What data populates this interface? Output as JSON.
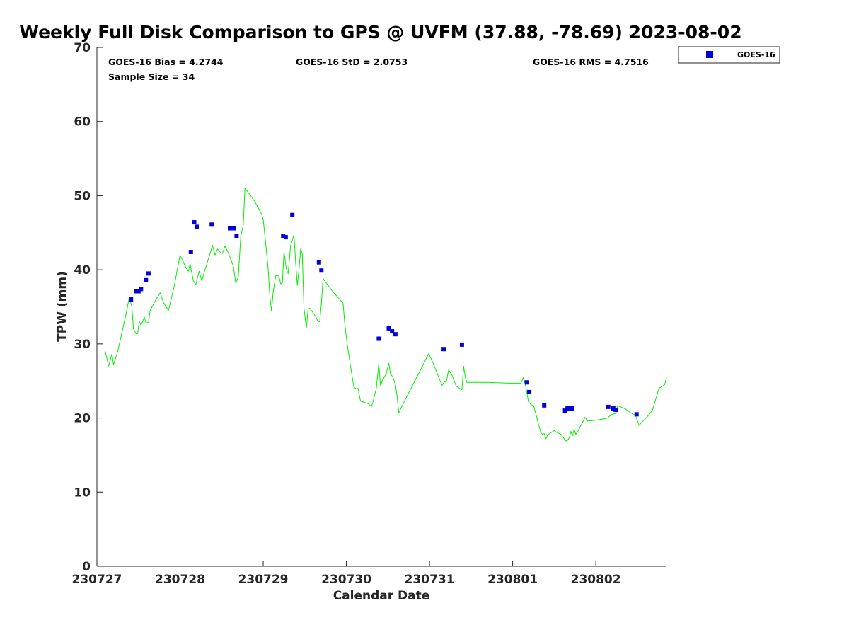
{
  "chart_data": {
    "type": "scatter",
    "title": "Weekly Full Disk Comparison to GPS @ UVFM (37.88, -78.69) 2023-08-02",
    "xlabel": "Calendar Date",
    "ylabel": "TPW (mm)",
    "xlim": [
      0,
      6.85
    ],
    "ylim": [
      0,
      70
    ],
    "x_ticks": [
      0,
      1,
      2,
      3,
      4,
      5,
      6
    ],
    "x_tick_labels": [
      "230727",
      "230728",
      "230729",
      "230730",
      "230731",
      "230801",
      "230802"
    ],
    "y_ticks": [
      0,
      10,
      20,
      30,
      40,
      50,
      60,
      70
    ],
    "y_tick_labels": [
      "0",
      "10",
      "20",
      "30",
      "40",
      "50",
      "60",
      "70"
    ],
    "stats": {
      "bias": "GOES-16 Bias = 4.2744",
      "std": "GOES-16 StD = 2.0753",
      "rms": "GOES-16 RMS = 4.7516",
      "sample": "Sample Size = 34"
    },
    "legend": {
      "position": "top-right",
      "entries": [
        "GOES-16"
      ]
    },
    "series": [
      {
        "name": "GOES-16",
        "kind": "marker",
        "color": "#0000dd",
        "points": [
          [
            0.41,
            36.0
          ],
          [
            0.47,
            37.1
          ],
          [
            0.5,
            37.1
          ],
          [
            0.53,
            37.4
          ],
          [
            0.59,
            38.6
          ],
          [
            0.62,
            39.5
          ],
          [
            1.13,
            42.4
          ],
          [
            1.17,
            46.4
          ],
          [
            1.2,
            45.8
          ],
          [
            1.38,
            46.1
          ],
          [
            1.6,
            45.6
          ],
          [
            1.65,
            45.6
          ],
          [
            1.68,
            44.6
          ],
          [
            2.24,
            44.6
          ],
          [
            2.27,
            44.4
          ],
          [
            2.35,
            47.4
          ],
          [
            2.67,
            41.0
          ],
          [
            2.7,
            39.9
          ],
          [
            3.39,
            30.7
          ],
          [
            3.51,
            32.1
          ],
          [
            3.55,
            31.7
          ],
          [
            3.59,
            31.3
          ],
          [
            4.17,
            29.3
          ],
          [
            4.39,
            29.9
          ],
          [
            5.17,
            24.8
          ],
          [
            5.2,
            23.5
          ],
          [
            5.38,
            21.7
          ],
          [
            5.63,
            21.0
          ],
          [
            5.66,
            21.3
          ],
          [
            5.71,
            21.3
          ],
          [
            6.15,
            21.5
          ],
          [
            6.21,
            21.3
          ],
          [
            6.24,
            21.1
          ],
          [
            6.49,
            20.5
          ]
        ]
      },
      {
        "name": "GPS",
        "kind": "line",
        "color": "#00ee00",
        "points": [
          [
            0.1,
            29.0
          ],
          [
            0.14,
            27.0
          ],
          [
            0.18,
            28.6
          ],
          [
            0.2,
            27.2
          ],
          [
            0.25,
            29.0
          ],
          [
            0.3,
            31.5
          ],
          [
            0.35,
            34.0
          ],
          [
            0.39,
            36.3
          ],
          [
            0.42,
            35.0
          ],
          [
            0.44,
            32.0
          ],
          [
            0.47,
            31.4
          ],
          [
            0.49,
            31.4
          ],
          [
            0.51,
            33.0
          ],
          [
            0.53,
            32.5
          ],
          [
            0.57,
            33.6
          ],
          [
            0.59,
            32.8
          ],
          [
            0.62,
            32.9
          ],
          [
            0.64,
            34.5
          ],
          [
            0.7,
            35.8
          ],
          [
            0.76,
            36.9
          ],
          [
            0.8,
            35.6
          ],
          [
            0.86,
            34.5
          ],
          [
            0.93,
            37.8
          ],
          [
            1.0,
            42.0
          ],
          [
            1.07,
            40.3
          ],
          [
            1.1,
            39.8
          ],
          [
            1.12,
            40.8
          ],
          [
            1.16,
            38.5
          ],
          [
            1.19,
            38.0
          ],
          [
            1.23,
            39.8
          ],
          [
            1.26,
            38.5
          ],
          [
            1.3,
            40.0
          ],
          [
            1.35,
            41.8
          ],
          [
            1.39,
            43.3
          ],
          [
            1.42,
            42.0
          ],
          [
            1.45,
            42.8
          ],
          [
            1.48,
            42.4
          ],
          [
            1.51,
            42.2
          ],
          [
            1.54,
            43.2
          ],
          [
            1.58,
            42.3
          ],
          [
            1.64,
            40.5
          ],
          [
            1.67,
            38.2
          ],
          [
            1.7,
            39.0
          ],
          [
            1.73,
            44.5
          ],
          [
            1.76,
            46.0
          ],
          [
            1.78,
            51.0
          ],
          [
            1.85,
            50.0
          ],
          [
            1.92,
            48.8
          ],
          [
            1.98,
            47.5
          ],
          [
            2.0,
            46.8
          ],
          [
            2.03,
            43.5
          ],
          [
            2.06,
            40.0
          ],
          [
            2.08,
            36.5
          ],
          [
            2.1,
            34.4
          ],
          [
            2.12,
            37.0
          ],
          [
            2.15,
            39.2
          ],
          [
            2.17,
            39.3
          ],
          [
            2.19,
            39.1
          ],
          [
            2.21,
            38.1
          ],
          [
            2.23,
            38.2
          ],
          [
            2.25,
            42.4
          ],
          [
            2.28,
            40.0
          ],
          [
            2.3,
            39.5
          ],
          [
            2.33,
            43.3
          ],
          [
            2.37,
            44.7
          ],
          [
            2.39,
            41.0
          ],
          [
            2.41,
            37.9
          ],
          [
            2.43,
            40.0
          ],
          [
            2.45,
            42.8
          ],
          [
            2.47,
            42.1
          ],
          [
            2.49,
            34.8
          ],
          [
            2.52,
            32.2
          ],
          [
            2.54,
            34.7
          ],
          [
            2.56,
            34.8
          ],
          [
            2.6,
            34.2
          ],
          [
            2.63,
            33.7
          ],
          [
            2.66,
            33.0
          ],
          [
            2.68,
            33.0
          ],
          [
            2.7,
            35.5
          ],
          [
            2.72,
            38.8
          ],
          [
            2.84,
            37.0
          ],
          [
            2.96,
            35.5
          ],
          [
            2.98,
            32.8
          ],
          [
            3.01,
            30.0
          ],
          [
            3.05,
            27.0
          ],
          [
            3.09,
            24.2
          ],
          [
            3.12,
            23.9
          ],
          [
            3.14,
            24.0
          ],
          [
            3.17,
            22.3
          ],
          [
            3.22,
            22.1
          ],
          [
            3.27,
            21.9
          ],
          [
            3.3,
            21.5
          ],
          [
            3.32,
            22.2
          ],
          [
            3.36,
            24.0
          ],
          [
            3.39,
            27.4
          ],
          [
            3.41,
            24.4
          ],
          [
            3.44,
            25.2
          ],
          [
            3.48,
            26.0
          ],
          [
            3.51,
            27.4
          ],
          [
            3.53,
            26.0
          ],
          [
            3.56,
            25.5
          ],
          [
            3.59,
            24.5
          ],
          [
            3.61,
            23.0
          ],
          [
            3.63,
            20.7
          ],
          [
            3.7,
            22.3
          ],
          [
            3.8,
            24.5
          ],
          [
            3.92,
            27.1
          ],
          [
            3.99,
            28.7
          ],
          [
            4.04,
            27.5
          ],
          [
            4.1,
            25.8
          ],
          [
            4.15,
            24.4
          ],
          [
            4.18,
            24.9
          ],
          [
            4.2,
            24.8
          ],
          [
            4.23,
            26.5
          ],
          [
            4.27,
            25.8
          ],
          [
            4.32,
            24.3
          ],
          [
            4.36,
            24.0
          ],
          [
            4.39,
            23.8
          ],
          [
            4.41,
            27.0
          ],
          [
            4.43,
            25.5
          ],
          [
            4.45,
            24.8
          ],
          [
            4.7,
            24.8
          ],
          [
            4.95,
            24.7
          ],
          [
            5.1,
            24.7
          ],
          [
            5.13,
            25.5
          ],
          [
            5.16,
            24.1
          ],
          [
            5.19,
            22.2
          ],
          [
            5.22,
            21.8
          ],
          [
            5.25,
            21.7
          ],
          [
            5.28,
            20.5
          ],
          [
            5.31,
            19.2
          ],
          [
            5.34,
            18.0
          ],
          [
            5.36,
            17.8
          ],
          [
            5.38,
            17.9
          ],
          [
            5.4,
            17.2
          ],
          [
            5.42,
            17.7
          ],
          [
            5.46,
            18.0
          ],
          [
            5.5,
            18.3
          ],
          [
            5.54,
            18.0
          ],
          [
            5.58,
            17.8
          ],
          [
            5.62,
            17.2
          ],
          [
            5.64,
            16.9
          ],
          [
            5.66,
            17.0
          ],
          [
            5.68,
            17.3
          ],
          [
            5.7,
            18.2
          ],
          [
            5.72,
            17.6
          ],
          [
            5.74,
            18.5
          ],
          [
            5.76,
            17.8
          ],
          [
            5.79,
            18.3
          ],
          [
            5.82,
            19.0
          ],
          [
            5.85,
            19.6
          ],
          [
            5.87,
            20.1
          ],
          [
            5.9,
            19.6
          ],
          [
            6.0,
            19.7
          ],
          [
            6.1,
            19.9
          ],
          [
            6.14,
            20.0
          ],
          [
            6.17,
            20.3
          ],
          [
            6.2,
            20.5
          ],
          [
            6.24,
            20.6
          ],
          [
            6.26,
            21.7
          ],
          [
            6.3,
            21.5
          ],
          [
            6.36,
            21.2
          ],
          [
            6.42,
            20.7
          ],
          [
            6.48,
            20.3
          ],
          [
            6.52,
            19.0
          ],
          [
            6.56,
            19.5
          ],
          [
            6.62,
            20.2
          ],
          [
            6.68,
            21.0
          ],
          [
            6.72,
            22.5
          ],
          [
            6.76,
            24.0
          ],
          [
            6.8,
            24.3
          ],
          [
            6.83,
            24.5
          ],
          [
            6.85,
            25.5
          ]
        ]
      }
    ]
  }
}
